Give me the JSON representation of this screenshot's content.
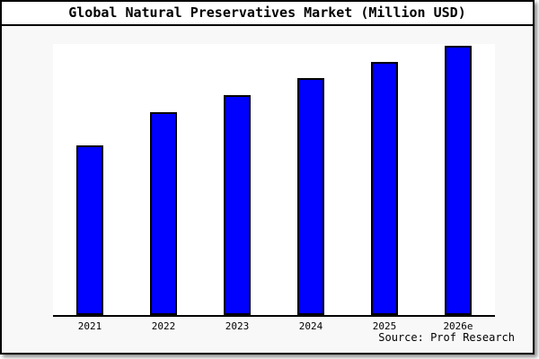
{
  "chart_data": {
    "type": "bar",
    "title": "Global Natural Preservatives Market (Million USD)",
    "categories": [
      "2021",
      "2022",
      "2023",
      "2024",
      "2025",
      "2026e"
    ],
    "values": [
      189,
      226,
      245,
      264,
      282,
      300
    ],
    "units": "relative-height-estimate (no y-axis scale shown)",
    "ylim": [
      0,
      302
    ],
    "xlabel": "",
    "ylabel": "",
    "grid": false,
    "legend": false,
    "y_axis_visible": false,
    "source": "Source: Prof Research",
    "colors": {
      "bar_fill": "#0000ff",
      "bar_border": "#000000",
      "plot_background": "#ffffff",
      "page_background": "#f8f8f8",
      "frame_border": "#000000",
      "title_background": "#ffffff",
      "text": "#000000"
    }
  }
}
